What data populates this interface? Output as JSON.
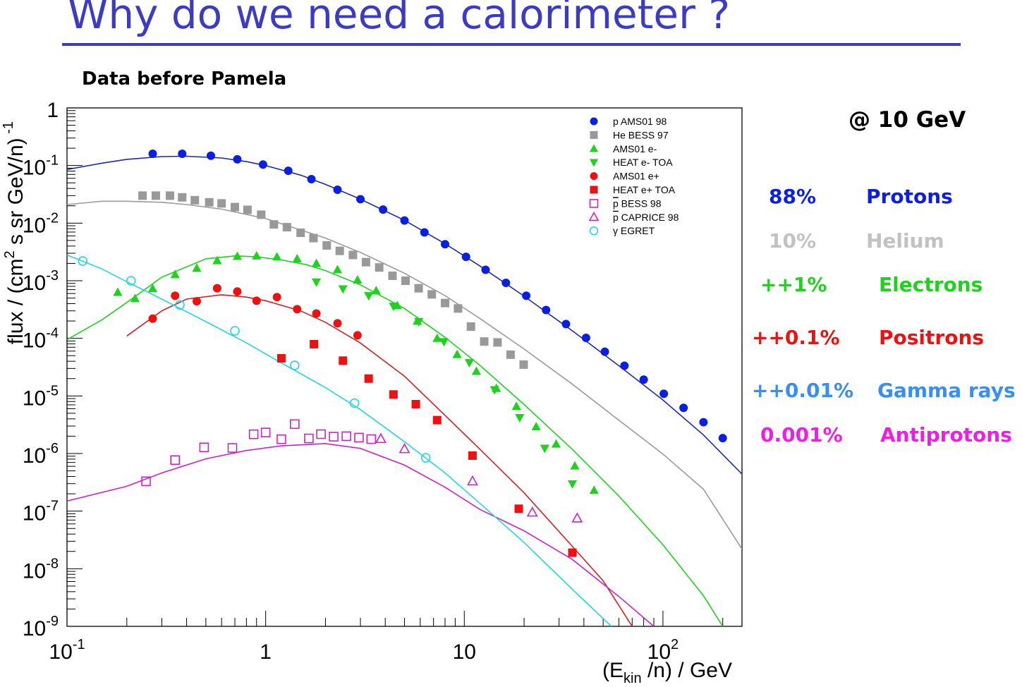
{
  "slide": {
    "title": "Why do we need a calorimeter ?",
    "subtitle": "Data before Pamela"
  },
  "side_panel": {
    "header": "@ 10 GeV",
    "rows": [
      {
        "percent": "88%",
        "species": "Protons",
        "color": "#0a1ee6"
      },
      {
        "percent": "10%",
        "species": "Helium",
        "color": "#c2c2c2"
      },
      {
        "percent": "++1%",
        "species": "Electrons",
        "color": "#1ed21e"
      },
      {
        "percent": "++0.1%",
        "species": "Positrons",
        "color": "#ee1111"
      },
      {
        "percent": "++0.01%",
        "species": "Gamma rays",
        "color": "#3a8ef0"
      },
      {
        "percent": "0.001%",
        "species": "Antiprotons",
        "color": "#ee1ee6"
      }
    ]
  },
  "chart_data": {
    "type": "scatter",
    "xscale": "log",
    "yscale": "log",
    "xlim": [
      0.1,
      250
    ],
    "ylim": [
      1e-09,
      1
    ],
    "xlabel_main": "(E",
    "xlabel_sub": "kin",
    "xlabel_rest": " /n) / GeV",
    "ylabel_main": "flux / (cm",
    "ylabel_sup": "2",
    "ylabel_rest": " s sr GeV/n)",
    "ylabel_exp": "-1",
    "xticks": [
      {
        "value": 0.1,
        "base": "10",
        "exp": "-1"
      },
      {
        "value": 1,
        "base": "1",
        "exp": ""
      },
      {
        "value": 10,
        "base": "10",
        "exp": ""
      },
      {
        "value": 100,
        "base": "10",
        "exp": "2"
      }
    ],
    "yticks": [
      {
        "value": 1,
        "base": "1",
        "exp": ""
      },
      {
        "value": 0.1,
        "base": "10",
        "exp": "-1"
      },
      {
        "value": 0.01,
        "base": "10",
        "exp": "-2"
      },
      {
        "value": 0.001,
        "base": "10",
        "exp": "-3"
      },
      {
        "value": 0.0001,
        "base": "10",
        "exp": "-4"
      },
      {
        "value": 1e-05,
        "base": "10",
        "exp": "-5"
      },
      {
        "value": 1e-06,
        "base": "10",
        "exp": "-6"
      },
      {
        "value": 1e-07,
        "base": "10",
        "exp": "-7"
      },
      {
        "value": 1e-08,
        "base": "10",
        "exp": "-8"
      },
      {
        "value": 1e-09,
        "base": "10",
        "exp": "-9"
      }
    ],
    "legend_position": "top-right",
    "series": [
      {
        "name": "p AMS01 98",
        "legend_over": "",
        "legend_rest": "",
        "marker": "circle",
        "filled": true,
        "color": "#0a1ee6",
        "x": [
          0.27,
          0.38,
          0.53,
          0.72,
          0.97,
          1.3,
          1.7,
          2.3,
          3.0,
          3.9,
          5.0,
          6.3,
          8.0,
          10.2,
          12.8,
          16.2,
          20.5,
          25.8,
          32.5,
          41,
          51,
          64,
          80,
          101,
          127,
          160,
          200
        ],
        "y": [
          0.16,
          0.16,
          0.148,
          0.128,
          0.104,
          0.081,
          0.058,
          0.038,
          0.026,
          0.0172,
          0.0111,
          0.0069,
          0.0043,
          0.0026,
          0.00155,
          0.00092,
          0.00055,
          0.00031,
          0.000177,
          0.000102,
          5.85e-05,
          3.35e-05,
          1.92e-05,
          1.09e-05,
          6.2e-06,
          3.5e-06,
          1.85e-06
        ]
      },
      {
        "name": "He BESS 97",
        "legend_over": "",
        "legend_rest": "",
        "marker": "square",
        "filled": true,
        "color": "#999999",
        "x": [
          0.24,
          0.28,
          0.33,
          0.38,
          0.44,
          0.52,
          0.6,
          0.7,
          0.81,
          0.95,
          1.1,
          1.28,
          1.5,
          1.74,
          2.03,
          2.36,
          2.75,
          3.2,
          3.73,
          4.35,
          5.06,
          5.89,
          6.86,
          8.0,
          9.3,
          10.8,
          12.6,
          14.7,
          17.1,
          19.9
        ],
        "y": [
          0.03,
          0.03,
          0.03,
          0.028,
          0.025,
          0.023,
          0.022,
          0.019,
          0.017,
          0.014,
          0.0095,
          0.0085,
          0.0068,
          0.0055,
          0.0041,
          0.0033,
          0.0028,
          0.0021,
          0.0017,
          0.00122,
          0.001,
          0.00074,
          0.00058,
          0.00041,
          0.00033,
          0.00016,
          8.8e-05,
          8.5e-05,
          5.2e-05,
          3.5e-05
        ]
      },
      {
        "name": "AMS01 e-",
        "legend_over": "",
        "legend_rest": "",
        "marker": "triangle-up",
        "filled": true,
        "color": "#1ed21e",
        "x": [
          0.18,
          0.22,
          0.27,
          0.35,
          0.45,
          0.57,
          0.72,
          0.9,
          1.14,
          1.44,
          1.8,
          2.3,
          2.9,
          3.6,
          4.6,
          5.8,
          7.3,
          9.2,
          11.5,
          14.5,
          18.3,
          23,
          29,
          36,
          45
        ],
        "y": [
          0.00063,
          0.00049,
          0.00073,
          0.00128,
          0.00165,
          0.00223,
          0.00265,
          0.0027,
          0.0026,
          0.0024,
          0.002,
          0.00155,
          0.00103,
          0.00067,
          0.00037,
          0.000198,
          9.99e-05,
          5.24e-05,
          2.68e-05,
          1.35e-05,
          6.6e-06,
          2.92e-06,
          1.46e-06,
          6.1e-07,
          2.3e-07
        ]
      },
      {
        "name": "HEAT e- TOA",
        "legend_over": "",
        "legend_rest": "",
        "marker": "triangle-down",
        "filled": true,
        "color": "#1ed21e",
        "x": [
          1.8,
          2.45,
          3.3,
          4.4,
          5.9,
          7.9,
          10.6,
          14.2,
          19.0,
          25.4,
          35
        ],
        "y": [
          0.00095,
          0.00072,
          0.00055,
          0.00036,
          0.000196,
          8.73e-05,
          3.78e-05,
          1.28e-05,
          4.2e-06,
          1.23e-06,
          2.98e-07
        ]
      },
      {
        "name": "AMS01 e+",
        "legend_over": "",
        "legend_rest": "",
        "marker": "circle",
        "filled": true,
        "color": "#ee1111",
        "x": [
          0.27,
          0.35,
          0.45,
          0.57,
          0.72,
          0.9,
          1.14,
          1.44,
          1.8,
          2.3,
          2.9
        ],
        "y": [
          0.00022,
          0.00055,
          0.00044,
          0.00074,
          0.00065,
          0.00045,
          0.00052,
          0.00032,
          0.00027,
          0.000182,
          0.000113
        ]
      },
      {
        "name": "HEAT e+ TOA",
        "legend_over": "",
        "legend_rest": "",
        "marker": "square",
        "filled": true,
        "color": "#ee1111",
        "x": [
          1.2,
          1.75,
          2.45,
          3.3,
          4.4,
          5.7,
          7.3,
          11.0,
          18.8,
          35
        ],
        "y": [
          4.5e-05,
          7.9e-05,
          4.1e-05,
          2e-05,
          1.06e-05,
          7.2e-06,
          3.8e-06,
          9.2e-07,
          1.1e-07,
          1.9e-08
        ]
      },
      {
        "name": "",
        "legend_over": "p",
        "legend_rest": " BESS 98",
        "marker": "square",
        "filled": false,
        "color": "#cc22cc",
        "x": [
          0.25,
          0.35,
          0.49,
          0.68,
          0.87,
          1.0,
          1.2,
          1.4,
          1.65,
          1.9,
          2.2,
          2.55,
          2.95,
          3.4
        ],
        "y": [
          3.3e-07,
          7.7e-07,
          1.28e-06,
          1.25e-06,
          2.16e-06,
          2.32e-06,
          1.77e-06,
          3.24e-06,
          1.83e-06,
          2.17e-06,
          1.96e-06,
          2e-06,
          1.89e-06,
          1.78e-06
        ]
      },
      {
        "name": "",
        "legend_over": "p",
        "legend_rest": " CAPRICE 98",
        "marker": "triangle-up",
        "filled": false,
        "color": "#cc22cc",
        "x": [
          3.8,
          5.0,
          11.0,
          22.0,
          37.0
        ],
        "y": [
          1.8e-06,
          1.2e-06,
          3.3e-07,
          9.5e-08,
          7.5e-08
        ]
      },
      {
        "name": "γ EGRET",
        "legend_over": "",
        "legend_rest": "",
        "marker": "circle",
        "filled": false,
        "color": "#26d4e6",
        "x": [
          0.12,
          0.21,
          0.37,
          0.7,
          1.4,
          2.8,
          6.4
        ],
        "y": [
          0.0022,
          0.001,
          0.00038,
          0.000135,
          3.4e-05,
          7.5e-06,
          8.4e-07
        ]
      }
    ],
    "curves": [
      {
        "color": "#1a2ab0",
        "x": [
          0.1,
          0.15,
          0.2,
          0.3,
          0.4,
          0.6,
          0.8,
          1,
          1.5,
          2,
          3,
          5,
          8,
          12,
          20,
          35,
          60,
          100,
          160,
          250
        ],
        "y": [
          0.085,
          0.11,
          0.128,
          0.143,
          0.145,
          0.135,
          0.117,
          0.1,
          0.068,
          0.047,
          0.026,
          0.0112,
          0.0044,
          0.0018,
          0.00054,
          0.000135,
          3.35e-05,
          8.5e-06,
          2.1e-06,
          4.4e-07
        ]
      },
      {
        "color": "#9a9a9a",
        "x": [
          0.1,
          0.15,
          0.2,
          0.3,
          0.4,
          0.6,
          1,
          2,
          3,
          5,
          8,
          12,
          20,
          35,
          60,
          100,
          160,
          250
        ],
        "y": [
          0.021,
          0.024,
          0.024,
          0.023,
          0.021,
          0.0175,
          0.012,
          0.0055,
          0.0031,
          0.00135,
          0.00055,
          0.00022,
          6.5e-05,
          1.6e-05,
          3.8e-06,
          9.8e-07,
          2.4e-07,
          2.2e-08
        ]
      },
      {
        "color": "#1ed21e",
        "x": [
          0.1,
          0.15,
          0.2,
          0.3,
          0.5,
          0.7,
          0.9,
          1.2,
          1.6,
          2,
          3,
          5,
          8,
          12,
          20,
          35,
          60,
          100,
          160,
          200
        ],
        "y": [
          9.5e-05,
          0.00021,
          0.00042,
          0.00115,
          0.0024,
          0.0027,
          0.0026,
          0.0023,
          0.0019,
          0.0015,
          0.00085,
          0.00033,
          0.000104,
          3.38e-05,
          7.1e-06,
          1.18e-06,
          1.83e-07,
          2.6e-08,
          3.4e-09,
          1e-09
        ]
      },
      {
        "color": "#d42020",
        "x": [
          0.2,
          0.3,
          0.4,
          0.6,
          0.8,
          1,
          1.5,
          2,
          3,
          5,
          8,
          12,
          20,
          35,
          50,
          70
        ],
        "y": [
          0.00011,
          0.0003,
          0.00048,
          0.00057,
          0.00052,
          0.00045,
          0.0003,
          0.00019,
          8.3e-05,
          2.2e-05,
          4.6e-06,
          1.18e-06,
          2.08e-07,
          2.45e-08,
          6.2e-09,
          1e-09
        ]
      },
      {
        "color": "#cc22cc",
        "x": [
          0.1,
          0.2,
          0.3,
          0.5,
          0.8,
          1.2,
          2,
          3,
          5,
          8,
          12,
          20,
          35,
          60,
          90
        ],
        "y": [
          1.5e-07,
          2.7e-07,
          4.6e-07,
          8.1e-07,
          1.13e-06,
          1.36e-06,
          1.49e-06,
          1.23e-06,
          6.3e-07,
          2.6e-07,
          1.07e-07,
          4.55e-08,
          1.45e-08,
          3.3e-09,
          1e-09
        ]
      },
      {
        "color": "#26d4e6",
        "x": [
          0.1,
          0.15,
          0.2,
          0.3,
          0.5,
          0.8,
          1.2,
          2,
          3,
          5,
          8,
          12,
          20,
          35,
          55
        ],
        "y": [
          0.0028,
          0.0016,
          0.00096,
          0.00048,
          0.000195,
          8.35e-05,
          3.75e-05,
          1.4e-05,
          5.8e-06,
          1.6e-06,
          4.6e-07,
          1.36e-07,
          2.85e-08,
          4.4e-09,
          1e-09
        ]
      }
    ]
  }
}
